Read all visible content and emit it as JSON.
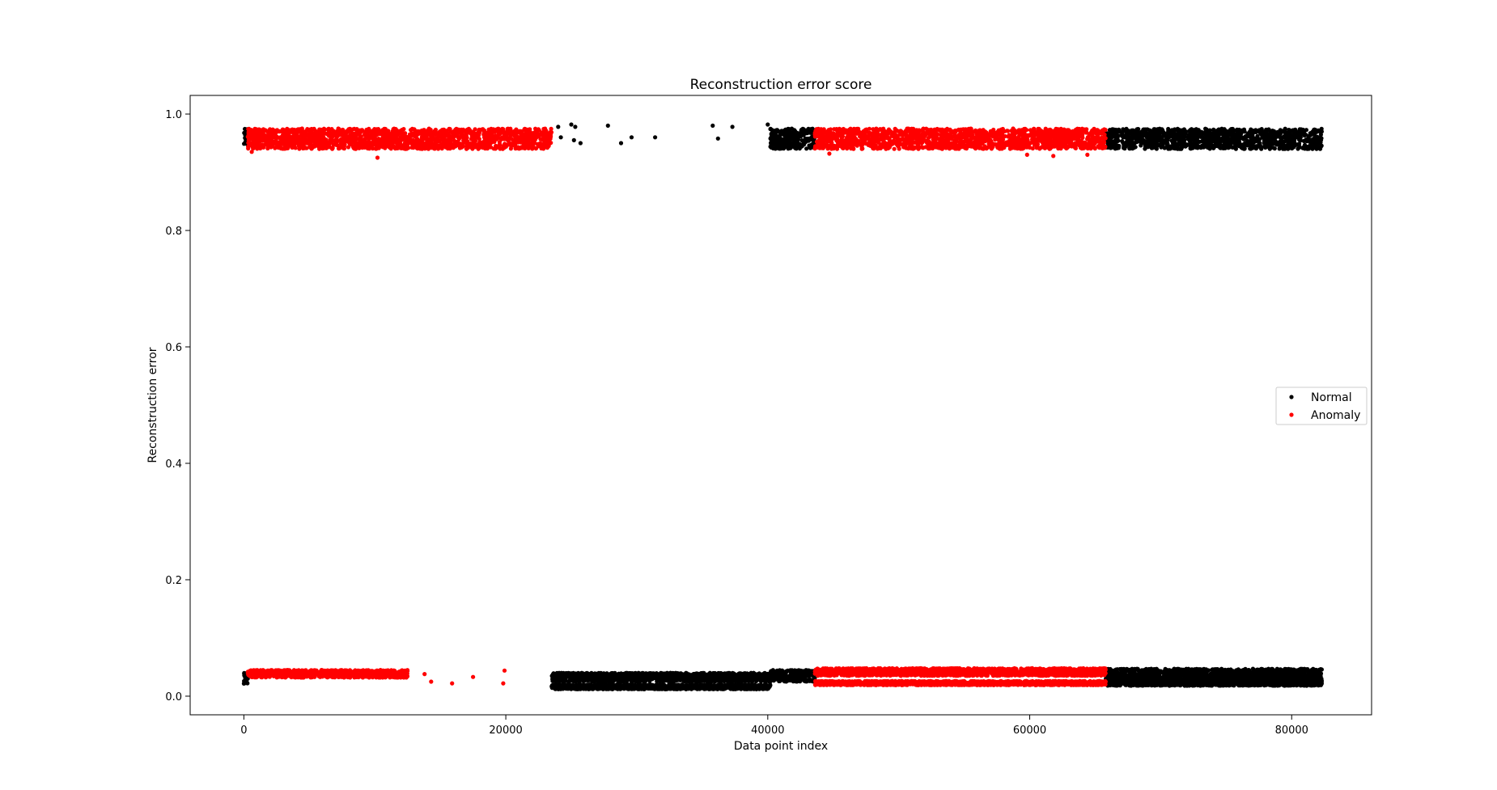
{
  "chart_data": {
    "type": "scatter",
    "title": "Reconstruction error score",
    "xlabel": "Data point index",
    "ylabel": "Reconstruction error",
    "xlim": [
      -4100,
      86100
    ],
    "ylim": [
      -0.032,
      1.032
    ],
    "xticks": [
      0,
      20000,
      40000,
      60000,
      80000
    ],
    "yticks": [
      0.0,
      0.2,
      0.4,
      0.6,
      0.8,
      1.0
    ],
    "xtick_labels": [
      "0",
      "20000",
      "40000",
      "60000",
      "80000"
    ],
    "ytick_labels": [
      "0.0",
      "0.2",
      "0.4",
      "0.6",
      "0.8",
      "1.0"
    ],
    "grid": false,
    "legend_position": "center-right",
    "series": [
      {
        "name": "Normal",
        "color": "#000000",
        "bands": [
          {
            "x": [
              0,
              300
            ],
            "y": [
              0.945,
              0.975
            ]
          },
          {
            "x": [
              0,
              300
            ],
            "y": [
              0.02,
              0.04
            ]
          },
          {
            "x": [
              23500,
              40200
            ],
            "y": [
              0.025,
              0.04
            ]
          },
          {
            "x": [
              23500,
              40200
            ],
            "y": [
              0.012,
              0.02
            ]
          },
          {
            "x": [
              40200,
              43600
            ],
            "y": [
              0.94,
              0.975
            ]
          },
          {
            "x": [
              40200,
              43600
            ],
            "y": [
              0.025,
              0.045
            ]
          },
          {
            "x": [
              65800,
              82300
            ],
            "y": [
              0.94,
              0.975
            ]
          },
          {
            "x": [
              65800,
              82300
            ],
            "y": [
              0.028,
              0.047
            ]
          },
          {
            "x": [
              65800,
              82300
            ],
            "y": [
              0.018,
              0.028
            ]
          }
        ],
        "points": [
          {
            "x": 24000,
            "y": 0.978
          },
          {
            "x": 24200,
            "y": 0.96
          },
          {
            "x": 25000,
            "y": 0.982
          },
          {
            "x": 25300,
            "y": 0.978
          },
          {
            "x": 25700,
            "y": 0.95
          },
          {
            "x": 25200,
            "y": 0.955
          },
          {
            "x": 27800,
            "y": 0.98
          },
          {
            "x": 28800,
            "y": 0.95
          },
          {
            "x": 29600,
            "y": 0.96
          },
          {
            "x": 31400,
            "y": 0.96
          },
          {
            "x": 35800,
            "y": 0.98
          },
          {
            "x": 36200,
            "y": 0.958
          },
          {
            "x": 37300,
            "y": 0.978
          },
          {
            "x": 40000,
            "y": 0.982
          },
          {
            "x": 40200,
            "y": 0.958
          }
        ]
      },
      {
        "name": "Anomaly",
        "color": "#ff0000",
        "bands": [
          {
            "x": [
              300,
              23500
            ],
            "y": [
              0.94,
              0.975
            ]
          },
          {
            "x": [
              300,
              12500
            ],
            "y": [
              0.032,
              0.045
            ]
          },
          {
            "x": [
              43600,
              65800
            ],
            "y": [
              0.94,
              0.975
            ]
          },
          {
            "x": [
              43600,
              65800
            ],
            "y": [
              0.035,
              0.048
            ]
          },
          {
            "x": [
              43600,
              65800
            ],
            "y": [
              0.019,
              0.026
            ]
          }
        ],
        "points": [
          {
            "x": 13800,
            "y": 0.038
          },
          {
            "x": 14300,
            "y": 0.025
          },
          {
            "x": 15900,
            "y": 0.022
          },
          {
            "x": 17500,
            "y": 0.033
          },
          {
            "x": 19800,
            "y": 0.022
          },
          {
            "x": 19900,
            "y": 0.044
          },
          {
            "x": 10200,
            "y": 0.925
          },
          {
            "x": 59800,
            "y": 0.93
          },
          {
            "x": 600,
            "y": 0.935
          },
          {
            "x": 44700,
            "y": 0.932
          },
          {
            "x": 61800,
            "y": 0.928
          },
          {
            "x": 64400,
            "y": 0.93
          }
        ]
      }
    ]
  }
}
